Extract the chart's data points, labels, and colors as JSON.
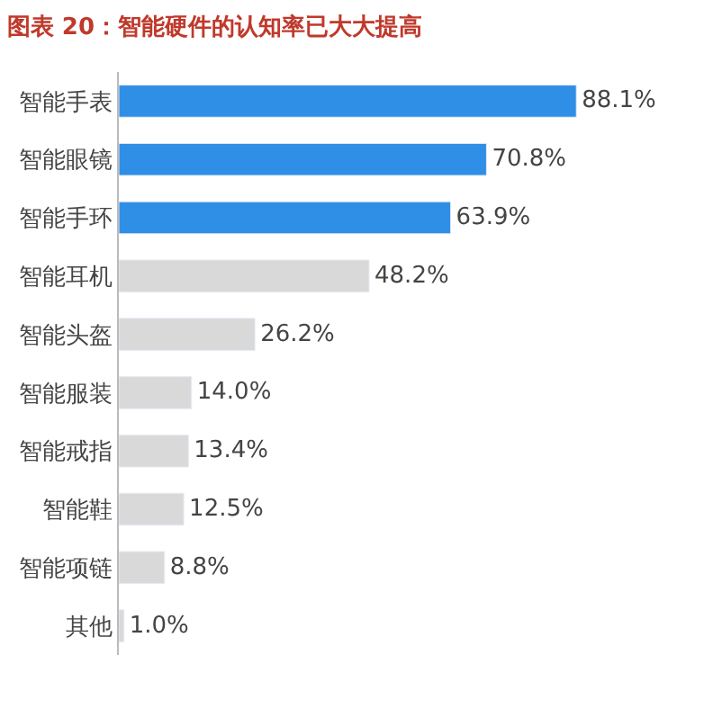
{
  "chart_data": {
    "type": "bar",
    "title": "图表 20：智能硬件的认知率已大大提高",
    "categories": [
      "智能手表",
      "智能眼镜",
      "智能手环",
      "智能耳机",
      "智能头盔",
      "智能服装",
      "智能戒指",
      "智能鞋",
      "智能项链",
      "其他"
    ],
    "values": [
      88.1,
      70.8,
      63.9,
      48.2,
      26.2,
      14.0,
      13.4,
      12.5,
      8.8,
      1.0
    ],
    "value_labels": [
      "88.1%",
      "70.8%",
      "63.9%",
      "48.2%",
      "26.2%",
      "14.0%",
      "13.4%",
      "12.5%",
      "8.8%",
      "1.0%"
    ],
    "colors": [
      "#2f8ee5",
      "#2f8ee5",
      "#2f8ee5",
      "#d9d9d9",
      "#d9d9d9",
      "#d9d9d9",
      "#d9d9d9",
      "#d9d9d9",
      "#d9d9d9",
      "#d9d9d9"
    ],
    "orientation": "horizontal"
  }
}
